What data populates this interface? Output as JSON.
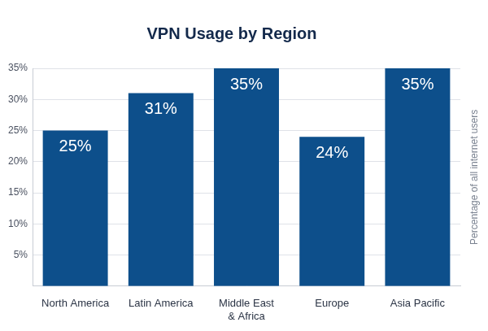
{
  "chart_data": {
    "type": "bar",
    "title": "VPN Usage by Region",
    "categories": [
      "North America",
      "Latin America",
      "Middle East & Africa",
      "Europe",
      "Asia Pacific"
    ],
    "values": [
      25,
      31,
      35,
      24,
      35
    ],
    "value_labels": [
      "25%",
      "31%",
      "35%",
      "24%",
      "35%"
    ],
    "color": "#0d4f8b",
    "ylabel": "Percentage of all internet users",
    "ylim": [
      0,
      35
    ],
    "yticks": [
      {
        "value": 5,
        "label": "5%"
      },
      {
        "value": 10,
        "label": "10%"
      },
      {
        "value": 15,
        "label": "15%"
      },
      {
        "value": 20,
        "label": "20%"
      },
      {
        "value": 25,
        "label": "25%"
      },
      {
        "value": 30,
        "label": "30%"
      },
      {
        "value": 35,
        "label": "35%"
      }
    ],
    "grid": true,
    "data_labels": true
  }
}
